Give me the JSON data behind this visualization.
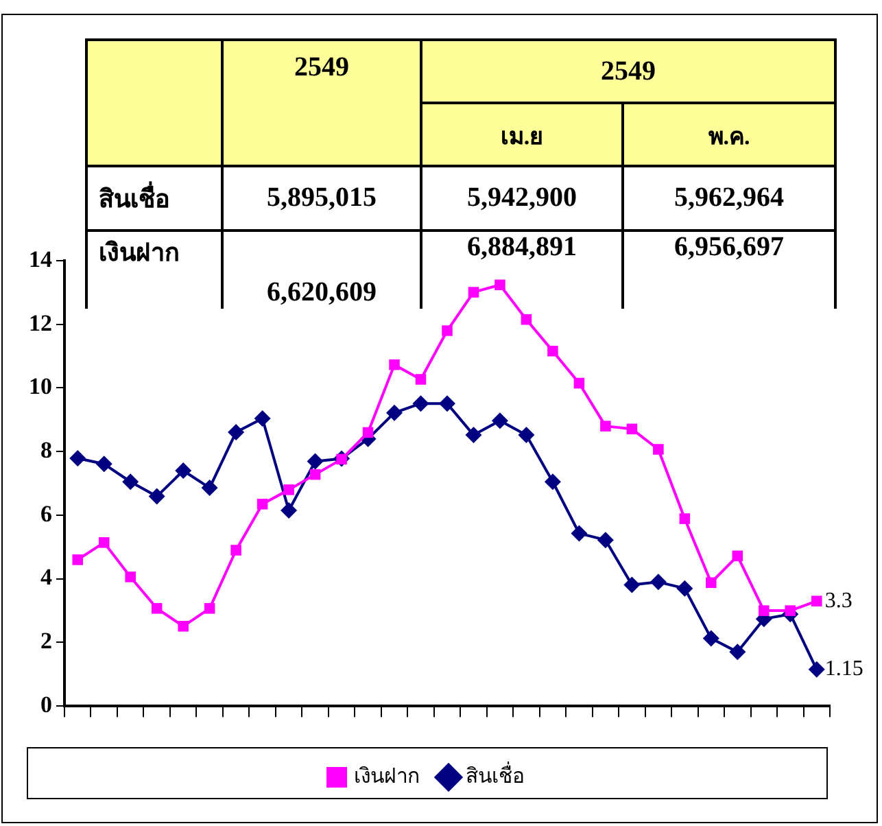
{
  "chart_data": {
    "type": "line",
    "categories": [
      null,
      null,
      null,
      null,
      null,
      null,
      null,
      null,
      null,
      null,
      null,
      null,
      null,
      null,
      null,
      null,
      null,
      null,
      null,
      null,
      null,
      null,
      null,
      null,
      null,
      null,
      null,
      null,
      null
    ],
    "ylim": [
      0,
      14
    ],
    "yticks": [
      0,
      2,
      4,
      6,
      8,
      10,
      12,
      14
    ],
    "grid": false,
    "legend": "bottom",
    "line_style": "solid",
    "annotations": [
      "2549",
      "2549",
      "เม.ย",
      "พ.ค.",
      "สินเชื่อ",
      "5,895,015",
      "5,942,900",
      "5,962,964",
      "เงินฝาก",
      "6,620,609",
      "6,884,891",
      "6,956,697"
    ],
    "series": [
      {
        "name": "สินเชื่อ",
        "color": "#000080",
        "marker": "diamond",
        "values": [
          7.79,
          7.61,
          7.05,
          6.59,
          7.4,
          6.86,
          8.61,
          9.04,
          6.15,
          7.69,
          7.78,
          8.4,
          9.22,
          9.51,
          9.51,
          8.52,
          8.97,
          8.52,
          7.05,
          5.43,
          5.22,
          3.81,
          3.9,
          3.7,
          2.13,
          1.7,
          2.74,
          2.89,
          1.15
        ],
        "value_labels": [
          null,
          null,
          null,
          null,
          null,
          null,
          null,
          null,
          null,
          null,
          null,
          null,
          null,
          null,
          null,
          null,
          null,
          null,
          null,
          null,
          null,
          null,
          null,
          null,
          null,
          null,
          null,
          null,
          "1.15"
        ]
      },
      {
        "name": "เงินฝาก",
        "color": "#ff00ff",
        "marker": "square",
        "values": [
          4.6,
          5.14,
          4.06,
          3.07,
          2.51,
          3.07,
          4.9,
          6.35,
          6.8,
          7.28,
          7.76,
          8.6,
          10.73,
          10.27,
          11.8,
          13.01,
          13.24,
          12.15,
          11.16,
          10.15,
          8.8,
          8.71,
          8.07,
          5.89,
          3.88,
          4.72,
          3.0,
          3.0,
          3.3
        ],
        "value_labels": [
          null,
          null,
          null,
          null,
          null,
          null,
          null,
          null,
          null,
          null,
          null,
          null,
          null,
          null,
          null,
          null,
          null,
          null,
          null,
          null,
          null,
          null,
          null,
          null,
          null,
          null,
          null,
          null,
          "3.3"
        ]
      }
    ]
  }
}
